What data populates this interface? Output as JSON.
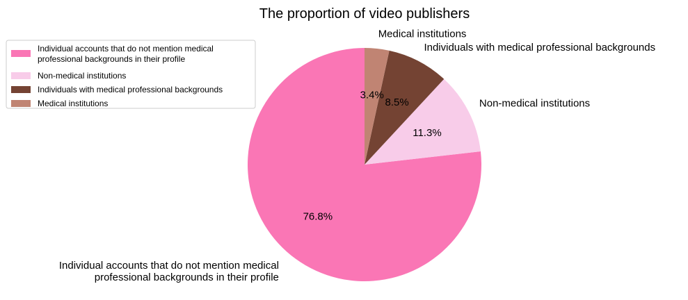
{
  "chart_data": {
    "type": "pie",
    "title": "The proportion of video publishers",
    "slices": [
      {
        "label": "Individual accounts that do not mention medical professional backgrounds in their profile",
        "label_lines": [
          "Individual accounts that do not mention medical",
          "professional backgrounds in their profile"
        ],
        "value": 76.8,
        "pct_label": "76.8%",
        "color": "#fa76b5"
      },
      {
        "label": "Non-medical institutions",
        "label_lines": [
          "Non-medical institutions"
        ],
        "value": 11.3,
        "pct_label": "11.3%",
        "color": "#f8cce9"
      },
      {
        "label": "Individuals with medical professional backgrounds",
        "label_lines": [
          "Individuals with medical professional backgrounds"
        ],
        "value": 8.5,
        "pct_label": "8.5%",
        "color": "#744333"
      },
      {
        "label": "Medical institutions",
        "label_lines": [
          "Medical institutions"
        ],
        "value": 3.4,
        "pct_label": "3.4%",
        "color": "#c08473"
      }
    ],
    "legend": {
      "placement": "upper-left",
      "entries": [
        {
          "lines": [
            "Individual accounts that do not mention medical",
            "professional backgrounds in their profile"
          ],
          "color": "#fa76b5"
        },
        {
          "lines": [
            "Non-medical institutions"
          ],
          "color": "#f8cce9"
        },
        {
          "lines": [
            "Individuals with medical professional backgrounds"
          ],
          "color": "#744333"
        },
        {
          "lines": [
            "Medical institutions"
          ],
          "color": "#c08473"
        }
      ]
    }
  }
}
